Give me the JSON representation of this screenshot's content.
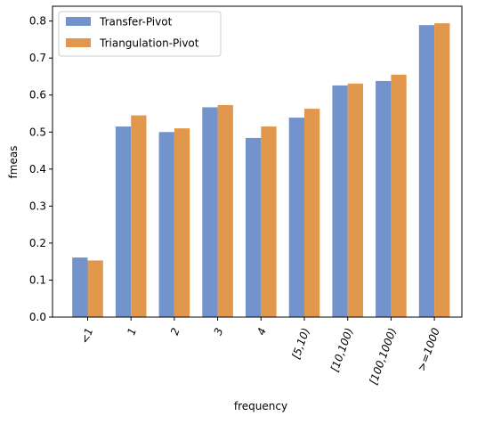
{
  "chart_data": {
    "type": "bar",
    "title": "",
    "xlabel": "frequency",
    "ylabel": "fmeas",
    "ylim": [
      0,
      0.84
    ],
    "yticks": [
      0.0,
      0.1,
      0.2,
      0.3,
      0.4,
      0.5,
      0.6,
      0.7,
      0.8
    ],
    "ytick_labels": [
      "0.0",
      "0.1",
      "0.2",
      "0.3",
      "0.4",
      "0.5",
      "0.6",
      "0.7",
      "0.8"
    ],
    "categories": [
      "<1",
      "1",
      "2",
      "3",
      "4",
      "[5,10)",
      "[10,100)",
      "[100,1000)",
      ">=1000"
    ],
    "series": [
      {
        "name": "Transfer-Pivot",
        "color": "#7293cb",
        "values": [
          0.161,
          0.515,
          0.5,
          0.567,
          0.484,
          0.539,
          0.626,
          0.638,
          0.789
        ]
      },
      {
        "name": "Triangulation-Pivot",
        "color": "#e1974c",
        "values": [
          0.153,
          0.545,
          0.51,
          0.573,
          0.515,
          0.563,
          0.631,
          0.655,
          0.794
        ]
      }
    ],
    "legend_position": "top-left",
    "grid": false,
    "xtick_rotation_deg": -70
  }
}
